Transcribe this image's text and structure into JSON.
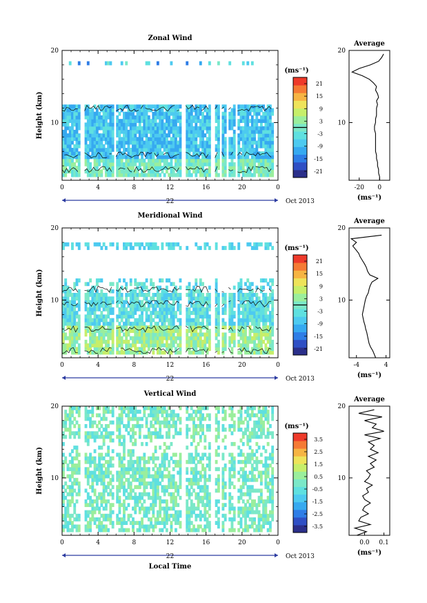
{
  "colors": {
    "colormap": [
      "#2b2f8a",
      "#2f4fc4",
      "#2e7de6",
      "#36a9f0",
      "#4dcaf0",
      "#5fe0e0",
      "#7be8c8",
      "#9aee9c",
      "#c6ee6a",
      "#eee35a",
      "#f6b443",
      "#f57a34",
      "#ee3a2a"
    ],
    "text": "#000000",
    "axis_blue": "#2b3aa0"
  },
  "chart_data": [
    {
      "type": "heatmap",
      "title": "Zonal Wind",
      "ylabel": "Height (km)",
      "yticks": [
        "20",
        "10"
      ],
      "xticks": [
        "0",
        "4",
        "8",
        "12",
        "16",
        "20",
        "0"
      ],
      "day_label": "22",
      "date_label": "Oct 2013",
      "xlim": [
        0,
        24
      ],
      "ylim": [
        2,
        20
      ],
      "colorbar": {
        "unit": "(ms⁻¹)",
        "ticks": [
          "21",
          "15",
          "9",
          "3",
          "-3",
          "-9",
          "-15",
          "-21"
        ],
        "range": [
          -24,
          24
        ],
        "contour_marker": 0
      },
      "profile": {
        "title": "Average",
        "yticks": [
          "20",
          "10"
        ],
        "xticks": [
          "-20",
          "0"
        ],
        "xlabel": "(ms⁻¹)",
        "xlim": [
          -30,
          10
        ],
        "heights": [
          2,
          2.5,
          3,
          3.5,
          4,
          4.5,
          5,
          5.5,
          6,
          6.5,
          7,
          7.5,
          8,
          8.5,
          9,
          9.5,
          10,
          10.5,
          11,
          11.5,
          12,
          12.5,
          13,
          13.5,
          14,
          14.5,
          15,
          15.5,
          16,
          16.5,
          17,
          17.5,
          18,
          18.5,
          19,
          19.5
        ],
        "values": [
          0,
          0,
          -1,
          -1,
          -2,
          -2,
          -3,
          -3,
          -4,
          -4,
          -4,
          -4,
          -4,
          -4,
          -5,
          -5,
          -4,
          -4,
          -3,
          -3,
          -3,
          -2,
          -3,
          -1,
          -2,
          -4,
          -3,
          -6,
          -10,
          -17,
          -27,
          -20,
          -9,
          -1,
          2,
          4
        ]
      }
    },
    {
      "type": "heatmap",
      "title": "Meridional Wind",
      "ylabel": "Height (km)",
      "yticks": [
        "20",
        "10"
      ],
      "xticks": [
        "0",
        "4",
        "8",
        "12",
        "16",
        "20",
        "0"
      ],
      "day_label": "22",
      "date_label": "Oct 2013",
      "xlim": [
        0,
        24
      ],
      "ylim": [
        2,
        20
      ],
      "colorbar": {
        "unit": "(ms⁻¹)",
        "ticks": [
          "21",
          "15",
          "9",
          "3",
          "-3",
          "-9",
          "-15",
          "-21"
        ],
        "range": [
          -24,
          24
        ],
        "contour_marker": 0
      },
      "profile": {
        "title": "Average",
        "yticks": [
          "20",
          "10"
        ],
        "xticks": [
          "-4",
          "4"
        ],
        "xlabel": "(ms⁻¹)",
        "xlim": [
          -6,
          5
        ],
        "heights": [
          2,
          2.5,
          3,
          3.5,
          4,
          4.5,
          5,
          5.5,
          6,
          6.5,
          7,
          7.5,
          8,
          8.5,
          9,
          9.5,
          10,
          10.5,
          11,
          11.5,
          12,
          12.5,
          13,
          13.5,
          14,
          14.5,
          15,
          15.5,
          16,
          16.5,
          17,
          17.5,
          18,
          18.5,
          19
        ],
        "values": [
          1.2,
          0.8,
          0.4,
          -0.2,
          -0.6,
          -0.8,
          -1.0,
          -1.2,
          -1.5,
          -1.7,
          -2.0,
          -2.2,
          -2.4,
          -2.2,
          -2.0,
          -1.8,
          -1.6,
          -1.3,
          -0.8,
          -0.6,
          -0.3,
          0.2,
          1.8,
          -0.4,
          -1.0,
          -1.3,
          -1.8,
          -2.4,
          -3.0,
          -3.4,
          -4.2,
          -5.0,
          -4.0,
          -5.4,
          2.8
        ]
      }
    },
    {
      "type": "heatmap",
      "title": "Vertical Wind",
      "ylabel": "Height (km)",
      "yticks": [
        "20",
        "10"
      ],
      "xticks": [
        "0",
        "4",
        "8",
        "12",
        "16",
        "20",
        "0"
      ],
      "day_label": "22",
      "date_label": "Oct 2013",
      "xlabel": "Local Time",
      "xlim": [
        0,
        24
      ],
      "ylim": [
        2,
        20
      ],
      "colorbar": {
        "unit": "(ms⁻¹)",
        "ticks": [
          "3.5",
          "2.5",
          "1.5",
          "0.5",
          "-0.5",
          "-1.5",
          "-2.5",
          "-3.5"
        ],
        "range": [
          -4,
          4
        ]
      },
      "profile": {
        "title": "Average",
        "yticks": [
          "20",
          "10"
        ],
        "xticks": [
          "0.0",
          "0.1"
        ],
        "xlabel": "(ms⁻¹)",
        "xlim": [
          -0.08,
          0.13
        ],
        "heights": [
          2,
          2.5,
          3,
          3.5,
          4,
          4.5,
          5,
          5.5,
          6,
          6.5,
          7,
          7.5,
          8,
          8.5,
          9,
          9.5,
          10,
          10.5,
          11,
          11.5,
          12,
          12.5,
          13,
          13.5,
          14,
          14.5,
          15,
          15.5,
          16,
          16.5,
          17,
          17.5,
          18,
          18.5,
          19,
          19.5
        ],
        "values": [
          -0.04,
          0.01,
          -0.05,
          0.03,
          -0.03,
          -0.02,
          0.02,
          -0.01,
          0.0,
          0.03,
          0.0,
          -0.01,
          0.02,
          0.01,
          0.04,
          0.0,
          0.02,
          0.03,
          0.01,
          0.05,
          0.03,
          0.06,
          0.02,
          0.07,
          0.03,
          0.05,
          0.02,
          0.08,
          0.0,
          0.1,
          0.04,
          0.06,
          0.0,
          0.09,
          -0.03,
          0.05
        ]
      }
    }
  ]
}
